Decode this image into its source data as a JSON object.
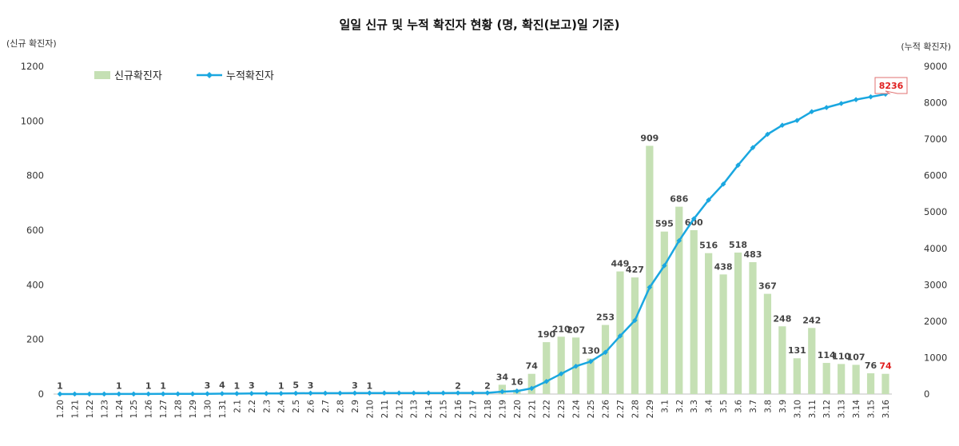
{
  "chart_data": {
    "type": "bar+line",
    "title": "일일 신규 및 누적 확진자 현황 (명, 확진(보고)일 기준)",
    "ylabel_left": "(신규 확진자)",
    "ylabel_right": "(누적 확진자)",
    "ylim_left": [
      0,
      1200
    ],
    "yticks_left": [
      "0",
      "200",
      "400",
      "600",
      "800",
      "1000",
      "1200"
    ],
    "ylim_right": [
      0,
      9000
    ],
    "yticks_right": [
      "0",
      "1000",
      "2000",
      "3000",
      "4000",
      "5000",
      "6000",
      "7000",
      "8000",
      "9000"
    ],
    "legend": [
      "신규확진자",
      "누적확진자"
    ],
    "colors": {
      "bar": "#c5e0b4",
      "line": "#1aa7e0",
      "highlight": "#e02020",
      "callout_border": "#e07070"
    },
    "categories": [
      "1.20",
      "1.21",
      "1.22",
      "1.23",
      "1.24",
      "1.25",
      "1.26",
      "1.27",
      "1.28",
      "1.29",
      "1.30",
      "1.31",
      "2.1",
      "2.2",
      "2.3",
      "2.4",
      "2.5",
      "2.6",
      "2.7",
      "2.8",
      "2.9",
      "2.10",
      "2.11",
      "2.12",
      "2.13",
      "2.14",
      "2.15",
      "2.16",
      "2.17",
      "2.18",
      "2.19",
      "2.20",
      "2.21",
      "2.22",
      "2.23",
      "2.24",
      "2.25",
      "2.26",
      "2.27",
      "2.28",
      "2.29",
      "3.1",
      "3.2",
      "3.3",
      "3.4",
      "3.5",
      "3.6",
      "3.7",
      "3.8",
      "3.9",
      "3.10",
      "3.11",
      "3.12",
      "3.13",
      "3.14",
      "3.15",
      "3.16"
    ],
    "series": [
      {
        "name": "신규확진자",
        "kind": "bar",
        "values": [
          1,
          0,
          0,
          0,
          1,
          0,
          1,
          1,
          0,
          0,
          3,
          4,
          1,
          3,
          0,
          1,
          5,
          3,
          0,
          0,
          3,
          1,
          0,
          0,
          0,
          0,
          0,
          2,
          0,
          2,
          34,
          16,
          74,
          190,
          210,
          207,
          130,
          253,
          449,
          427,
          909,
          595,
          686,
          600,
          516,
          438,
          518,
          483,
          367,
          248,
          131,
          242,
          114,
          110,
          107,
          76,
          74
        ],
        "labels": [
          "1",
          "",
          "",
          "",
          "1",
          "",
          "1",
          "1",
          "",
          "",
          "3",
          "4",
          "1",
          "3",
          "",
          "1",
          "5",
          "3",
          "",
          "",
          "3",
          "1",
          "",
          "",
          "",
          "",
          "",
          "2",
          "",
          "2",
          "34",
          "16",
          "74",
          "190",
          "210",
          "207",
          "130",
          "253",
          "449",
          "427",
          "909",
          "595",
          "686",
          "600",
          "516",
          "438",
          "518",
          "483",
          "367",
          "248",
          "131",
          "242",
          "114",
          "110",
          "107",
          "76",
          "74"
        ]
      },
      {
        "name": "누적확진자",
        "kind": "line",
        "values": [
          1,
          1,
          1,
          1,
          2,
          2,
          3,
          4,
          4,
          4,
          7,
          11,
          12,
          15,
          15,
          16,
          21,
          24,
          24,
          24,
          27,
          28,
          28,
          28,
          28,
          28,
          28,
          30,
          30,
          32,
          66,
          82,
          156,
          346,
          556,
          763,
          893,
          1146,
          1595,
          2022,
          2931,
          3526,
          4212,
          4812,
          5328,
          5766,
          6284,
          6767,
          7134,
          7382,
          7513,
          7755,
          7869,
          7979,
          8086,
          8162,
          8236
        ],
        "callout": "8236"
      }
    ]
  }
}
